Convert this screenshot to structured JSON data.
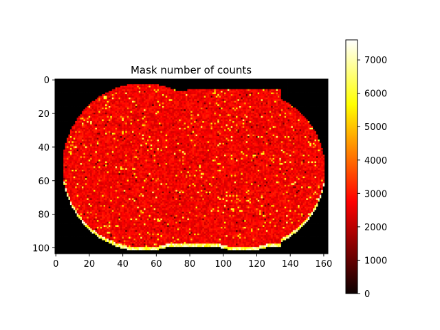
{
  "chart_data": {
    "type": "heatmap",
    "title": "Mask number of counts",
    "xlabel": "",
    "ylabel": "",
    "xlim": [
      -0.5,
      162.5
    ],
    "ylim": [
      103.5,
      -0.5
    ],
    "x_ticks": [
      0,
      20,
      40,
      60,
      80,
      100,
      120,
      140,
      160
    ],
    "y_ticks": [
      0,
      20,
      40,
      60,
      80,
      100
    ],
    "colormap": "hot",
    "colorbar": {
      "range": [
        0,
        7600
      ],
      "ticks": [
        0,
        1000,
        2000,
        3000,
        4000,
        5000,
        6000,
        7000
      ]
    },
    "grid": false,
    "shape": "coronal brain section, background value 0, tissue mostly ~2500-3500 counts, bright (~6000-7600) rim along bottom edge"
  },
  "colors": {
    "background_cell": "#000000",
    "tissue_typical": "#ff2a00",
    "rim_bright": "#ffff80"
  }
}
